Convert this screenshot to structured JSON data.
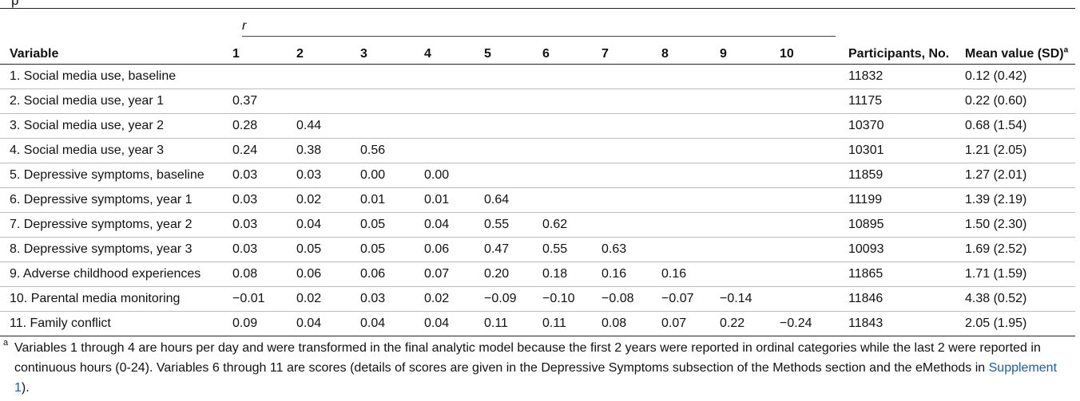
{
  "caption_fragment": "p",
  "r_label": "r",
  "columns": {
    "variable": "Variable",
    "r_cols": [
      "1",
      "2",
      "3",
      "4",
      "5",
      "6",
      "7",
      "8",
      "9",
      "10"
    ],
    "participants": "Participants, No.",
    "mean_main": "Mean value (SD)",
    "mean_sup": "a"
  },
  "rows": [
    {
      "label": "1. Social media use, baseline",
      "r": [
        "",
        "",
        "",
        "",
        "",
        "",
        "",
        "",
        "",
        ""
      ],
      "n": "11832",
      "mean": "0.12 (0.42)"
    },
    {
      "label": "2. Social media use, year 1",
      "r": [
        "0.37",
        "",
        "",
        "",
        "",
        "",
        "",
        "",
        "",
        ""
      ],
      "n": "11175",
      "mean": "0.22 (0.60)"
    },
    {
      "label": "3. Social media use, year 2",
      "r": [
        "0.28",
        "0.44",
        "",
        "",
        "",
        "",
        "",
        "",
        "",
        ""
      ],
      "n": "10370",
      "mean": "0.68 (1.54)"
    },
    {
      "label": "4. Social media use, year 3",
      "r": [
        "0.24",
        "0.38",
        "0.56",
        "",
        "",
        "",
        "",
        "",
        "",
        ""
      ],
      "n": "10301",
      "mean": "1.21 (2.05)"
    },
    {
      "label": "5. Depressive symptoms, baseline",
      "r": [
        "0.03",
        "0.03",
        "0.00",
        "0.00",
        "",
        "",
        "",
        "",
        "",
        ""
      ],
      "n": "11859",
      "mean": "1.27 (2.01)"
    },
    {
      "label": "6. Depressive symptoms, year 1",
      "r": [
        "0.03",
        "0.02",
        "0.01",
        "0.01",
        "0.64",
        "",
        "",
        "",
        "",
        ""
      ],
      "n": "11199",
      "mean": "1.39 (2.19)"
    },
    {
      "label": "7. Depressive symptoms, year 2",
      "r": [
        "0.03",
        "0.04",
        "0.05",
        "0.04",
        "0.55",
        "0.62",
        "",
        "",
        "",
        ""
      ],
      "n": "10895",
      "mean": "1.50 (2.30)"
    },
    {
      "label": "8. Depressive symptoms, year 3",
      "r": [
        "0.03",
        "0.05",
        "0.05",
        "0.06",
        "0.47",
        "0.55",
        "0.63",
        "",
        "",
        ""
      ],
      "n": "10093",
      "mean": "1.69 (2.52)"
    },
    {
      "label": "9. Adverse childhood experiences",
      "r": [
        "0.08",
        "0.06",
        "0.06",
        "0.07",
        "0.20",
        "0.18",
        "0.16",
        "0.16",
        "",
        ""
      ],
      "n": "11865",
      "mean": "1.71 (1.59)"
    },
    {
      "label": "10. Parental media monitoring",
      "r": [
        "−0.01",
        "0.02",
        "0.03",
        "0.02",
        "−0.09",
        "−0.10",
        "−0.08",
        "−0.07",
        "−0.14",
        ""
      ],
      "n": "11846",
      "mean": "4.38 (0.52)"
    },
    {
      "label": "11. Family conflict",
      "r": [
        "0.09",
        "0.04",
        "0.04",
        "0.04",
        "0.11",
        "0.11",
        "0.08",
        "0.07",
        "0.22",
        "−0.24"
      ],
      "n": "11843",
      "mean": "2.05 (1.95)"
    }
  ],
  "footnote": {
    "marker": "a",
    "text": "Variables 1 through 4 are hours per day and were transformed in the final analytic model because the first 2 years were reported in ordinal categories while the last 2 were reported in continuous hours (0-24). Variables 6 through 11 are scores (details of scores are given in the Depressive Symptoms subsection of the Methods section and the eMethods in ",
    "link": "Supplement 1",
    "end": ")."
  }
}
